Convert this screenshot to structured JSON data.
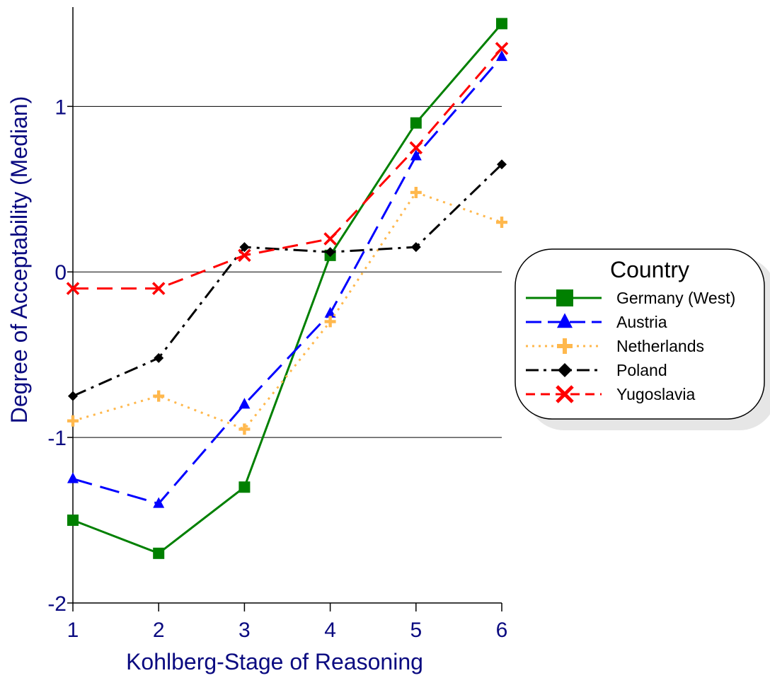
{
  "chart_data": {
    "type": "line",
    "xlabel": "Kohlberg-Stage of Reasoning",
    "ylabel": "Degree of Acceptability (Median)",
    "x": [
      1,
      2,
      3,
      4,
      5,
      6
    ],
    "xlim": [
      1,
      6
    ],
    "ylim": [
      -2,
      1.6
    ],
    "xticks": [
      "1",
      "2",
      "3",
      "4",
      "5",
      "6"
    ],
    "yticks": [
      {
        "value": -2,
        "label": "-2"
      },
      {
        "value": -1,
        "label": "-1"
      },
      {
        "value": 0,
        "label": "0"
      },
      {
        "value": 1,
        "label": "1"
      }
    ],
    "grid": "horizontal",
    "legend": {
      "title": "Country",
      "placement": "right"
    },
    "series": [
      {
        "name": "Germany (West)",
        "color": "#008000",
        "dash": "solid",
        "marker": "square",
        "values": [
          -1.5,
          -1.7,
          -1.3,
          0.1,
          0.9,
          1.5
        ]
      },
      {
        "name": "Austria",
        "color": "#0000ff",
        "dash": "long-dash",
        "marker": "triangle",
        "values": [
          -1.25,
          -1.4,
          -0.8,
          -0.25,
          0.7,
          1.3
        ]
      },
      {
        "name": "Netherlands",
        "color": "#ffb84d",
        "dash": "dotted",
        "marker": "plus",
        "values": [
          -0.9,
          -0.75,
          -0.95,
          -0.3,
          0.48,
          0.3
        ]
      },
      {
        "name": "Poland",
        "color": "#000000",
        "dash": "dash-dot",
        "marker": "diamond",
        "values": [
          -0.75,
          -0.52,
          0.15,
          0.12,
          0.15,
          0.65
        ]
      },
      {
        "name": "Yugoslavia",
        "color": "#ff0000",
        "dash": "dashed",
        "marker": "x",
        "values": [
          -0.1,
          -0.1,
          0.1,
          0.2,
          0.75,
          1.35
        ]
      }
    ]
  }
}
